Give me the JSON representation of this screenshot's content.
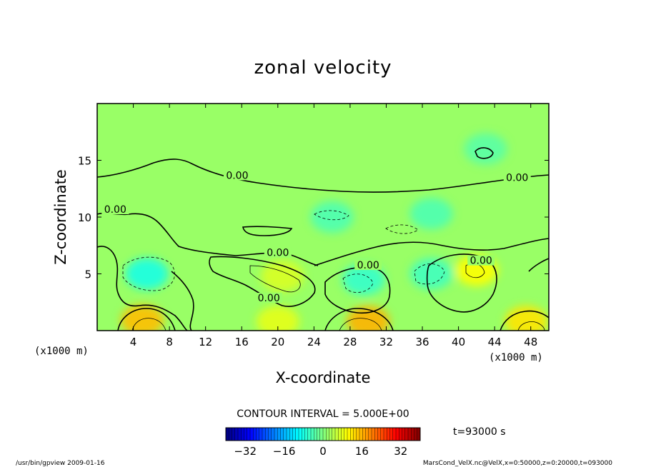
{
  "chart_data": {
    "type": "heatmap",
    "title": "zonal velocity",
    "xlabel": "X-coordinate",
    "ylabel": "Z-coordinate",
    "x_unit_left": "(x1000 m)",
    "x_unit_right": "(x1000 m)",
    "x_ticks": [
      4,
      8,
      12,
      16,
      20,
      24,
      28,
      32,
      36,
      40,
      44,
      48
    ],
    "y_ticks": [
      5,
      10,
      15
    ],
    "xlim": [
      0,
      50
    ],
    "ylim": [
      0,
      20
    ],
    "contour_labels": [
      {
        "text": "0.00",
        "x": 15.5,
        "z": 13.5
      },
      {
        "text": "0.00",
        "x": 46.5,
        "z": 13.3
      },
      {
        "text": "0.00",
        "x": 2.0,
        "z": 10.5
      },
      {
        "text": "0.00",
        "x": 20.0,
        "z": 6.7
      },
      {
        "text": "0.00",
        "x": 30.0,
        "z": 5.6
      },
      {
        "text": "0.00",
        "x": 42.5,
        "z": 6.0
      },
      {
        "text": "0.00",
        "x": 19.0,
        "z": 2.7
      }
    ],
    "contour_interval": "CONTOUR INTERVAL = 5.000E+00",
    "time_label": "t=93000 s",
    "colorbar": {
      "min": -40,
      "max": 40,
      "ticks": [
        -32,
        -16,
        0,
        16,
        32
      ],
      "tick_labels": [
        "−32",
        "−16",
        "0",
        "16",
        "32"
      ]
    },
    "field_blobs": [
      {
        "x": 5.5,
        "z": 5.0,
        "value": -8
      },
      {
        "x": 20.5,
        "z": 4.8,
        "value": 7
      },
      {
        "x": 29.5,
        "z": 4.5,
        "value": -6
      },
      {
        "x": 37.0,
        "z": 5.0,
        "value": -5
      },
      {
        "x": 42.0,
        "z": 5.3,
        "value": 10
      },
      {
        "x": 5.0,
        "z": 0.9,
        "value": 15
      },
      {
        "x": 30.0,
        "z": 0.8,
        "value": 16
      },
      {
        "x": 47.5,
        "z": 0.8,
        "value": 12
      },
      {
        "x": 20.0,
        "z": 0.8,
        "value": 8
      },
      {
        "x": 37.0,
        "z": 10.3,
        "value": -4
      },
      {
        "x": 26.0,
        "z": 10.0,
        "value": -4
      },
      {
        "x": 43.0,
        "z": 16.0,
        "value": -3
      }
    ],
    "background_value": 2
  },
  "footer": {
    "left": "/usr/bin/gpview   2009-01-16",
    "right": "MarsCond_VelX.nc@VelX,x=0:50000,z=0:20000,t=093000"
  },
  "colors": {
    "plot_background": "#33e61f",
    "contour_line": "#000000"
  }
}
